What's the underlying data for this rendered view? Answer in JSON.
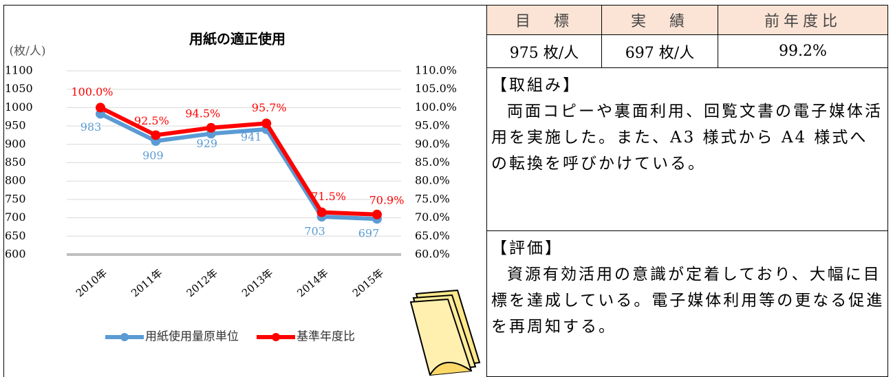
{
  "chart_data": {
    "type": "line",
    "title": "用紙の適正使用",
    "y_label": "(枚/人)",
    "categories": [
      "2010年",
      "2011年",
      "2012年",
      "2013年",
      "2014年",
      "2015年"
    ],
    "series": [
      {
        "name": "用紙使用量原単位",
        "color": "#5b9bd5",
        "values": [
          983,
          909,
          929,
          941,
          703,
          697
        ]
      },
      {
        "name": "基準年度比",
        "color": "#ff0000",
        "axis": "y2",
        "values": [
          100.0,
          92.5,
          94.5,
          95.7,
          71.5,
          70.9
        ],
        "value_labels": [
          "100.0%",
          "92.5%",
          "94.5%",
          "95.7%",
          "71.5%",
          "70.9%"
        ]
      }
    ],
    "ylim": [
      600,
      1100
    ],
    "yticks": [
      600,
      650,
      700,
      750,
      800,
      850,
      900,
      950,
      1000,
      1050,
      1100
    ],
    "y2lim": [
      60,
      110
    ],
    "y2ticks": [
      {
        "value": 60,
        "label": "60.0%"
      },
      {
        "value": 65,
        "label": "65.0%"
      },
      {
        "value": 70,
        "label": "70.0%"
      },
      {
        "value": 75,
        "label": "75.0%"
      },
      {
        "value": 80,
        "label": "80.0%"
      },
      {
        "value": 85,
        "label": "85.0%"
      },
      {
        "value": 90,
        "label": "90.0%"
      },
      {
        "value": 95,
        "label": "95.0%"
      },
      {
        "value": 100,
        "label": "100.0%"
      },
      {
        "value": 105,
        "label": "105.0%"
      },
      {
        "value": 110,
        "label": "110.0%"
      }
    ],
    "grid": true,
    "legend": "bottom"
  },
  "table": {
    "header": [
      "目　標",
      "実　績",
      "前年度比"
    ],
    "rows": [
      [
        "975 枚/人",
        "697 枚/人",
        "99.2%"
      ]
    ]
  },
  "sections": [
    {
      "heading": "【取組み】",
      "text": "両面コピーや裏面利用、回覧文書の電子媒体活用を実施した。また、A3 様式から A4 様式への転換を呼びかけている。"
    },
    {
      "heading": "【評価】",
      "text": "資源有効活用の意識が定着しており、大幅に目標を達成している。電子媒体利用等の更なる促進を再周知する。"
    }
  ]
}
